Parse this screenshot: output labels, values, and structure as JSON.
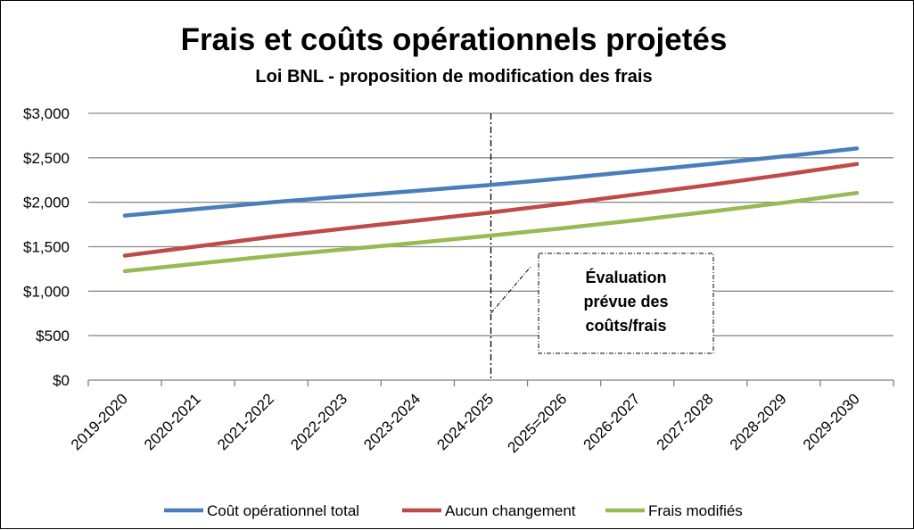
{
  "chart_data": {
    "type": "line",
    "title": "Frais et coûts opérationnels projetés",
    "subtitle": "Loi BNL - proposition de modification des frais",
    "categories": [
      "2019-2020",
      "2020-2021",
      "2021-2022",
      "2022-2023",
      "2023-2024",
      "2024-2025",
      "2025=2026",
      "2026-2027",
      "2027-2028",
      "2028-2029",
      "2029-2030"
    ],
    "y_ticks": [
      "$0",
      "$500",
      "$1,000",
      "$1,500",
      "$2,000",
      "$2,500",
      "$3,000"
    ],
    "ylim": [
      0,
      3000
    ],
    "grid": true,
    "legend_position": "bottom",
    "series": [
      {
        "name": "Coût opérationnel total",
        "color": "#4a7ebb",
        "values": [
          1850,
          1925,
          2000,
          2065,
          2130,
          2195,
          2270,
          2350,
          2430,
          2515,
          2605
        ]
      },
      {
        "name": "Aucun changement",
        "color": "#be4b48",
        "values": [
          1400,
          1505,
          1610,
          1705,
          1795,
          1885,
          1985,
          2090,
          2195,
          2310,
          2430
        ]
      },
      {
        "name": "Frais modifiés",
        "color": "#98b954",
        "values": [
          1225,
          1310,
          1395,
          1470,
          1545,
          1625,
          1710,
          1800,
          1895,
          1995,
          2105
        ]
      }
    ],
    "annotation": {
      "lines": [
        "Évaluation",
        "prévue des",
        "coûts/frais"
      ],
      "category": "2024-2025"
    }
  }
}
